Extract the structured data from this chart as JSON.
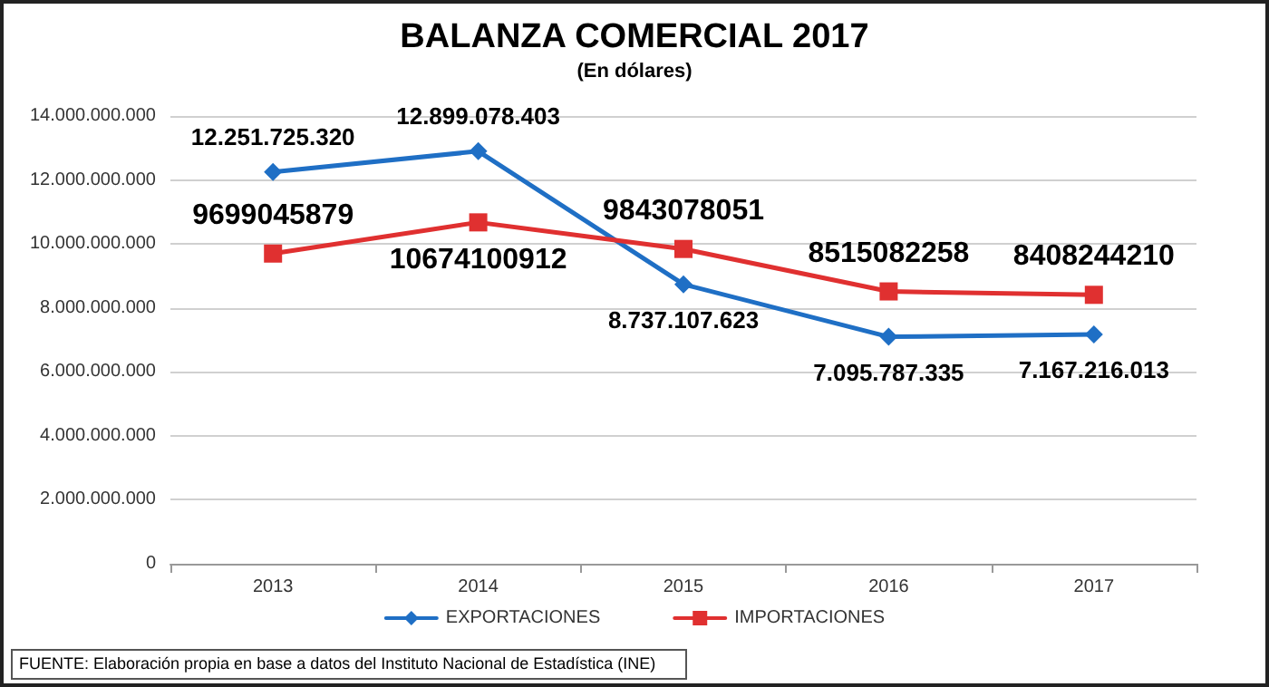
{
  "chart_data": {
    "type": "line",
    "title": "BALANZA COMERCIAL 2017",
    "subtitle": "(En dólares)",
    "categories": [
      "2013",
      "2014",
      "2015",
      "2016",
      "2017"
    ],
    "series": [
      {
        "name": "EXPORTACIONES",
        "color": "#1f6fc5",
        "marker": "diamond",
        "values": [
          12251725320,
          12899078403,
          8737107623,
          7095787335,
          7167216013
        ],
        "value_labels": [
          "12.251.725.320",
          "12.899.078.403",
          "8.737.107.623",
          "7.095.787.335",
          "7.167.216.013"
        ]
      },
      {
        "name": "IMPORTACIONES",
        "color": "#e03030",
        "marker": "square",
        "values": [
          9699045879,
          10674100912,
          9843078051,
          8515082258,
          8408244210
        ],
        "value_labels": [
          "9699045879",
          "10674100912",
          "9843078051",
          "8515082258",
          "8408244210"
        ]
      }
    ],
    "ylim": [
      0,
      14000000000
    ],
    "yticks": [
      {
        "value": 0,
        "label": "0"
      },
      {
        "value": 2000000000,
        "label": "2.000.000.000"
      },
      {
        "value": 4000000000,
        "label": "4.000.000.000"
      },
      {
        "value": 6000000000,
        "label": "6.000.000.000"
      },
      {
        "value": 8000000000,
        "label": "8.000.000.000"
      },
      {
        "value": 10000000000,
        "label": "10.000.000.000"
      },
      {
        "value": 12000000000,
        "label": "12.000.000.000"
      },
      {
        "value": 14000000000,
        "label": "14.000.000.000"
      }
    ],
    "grid": "y",
    "legend": "bottom",
    "line_style": "solid",
    "annotations": [
      "FUENTE: Elaboración propia en base a datos del Instituto Nacional de Estadística (INE)"
    ]
  }
}
